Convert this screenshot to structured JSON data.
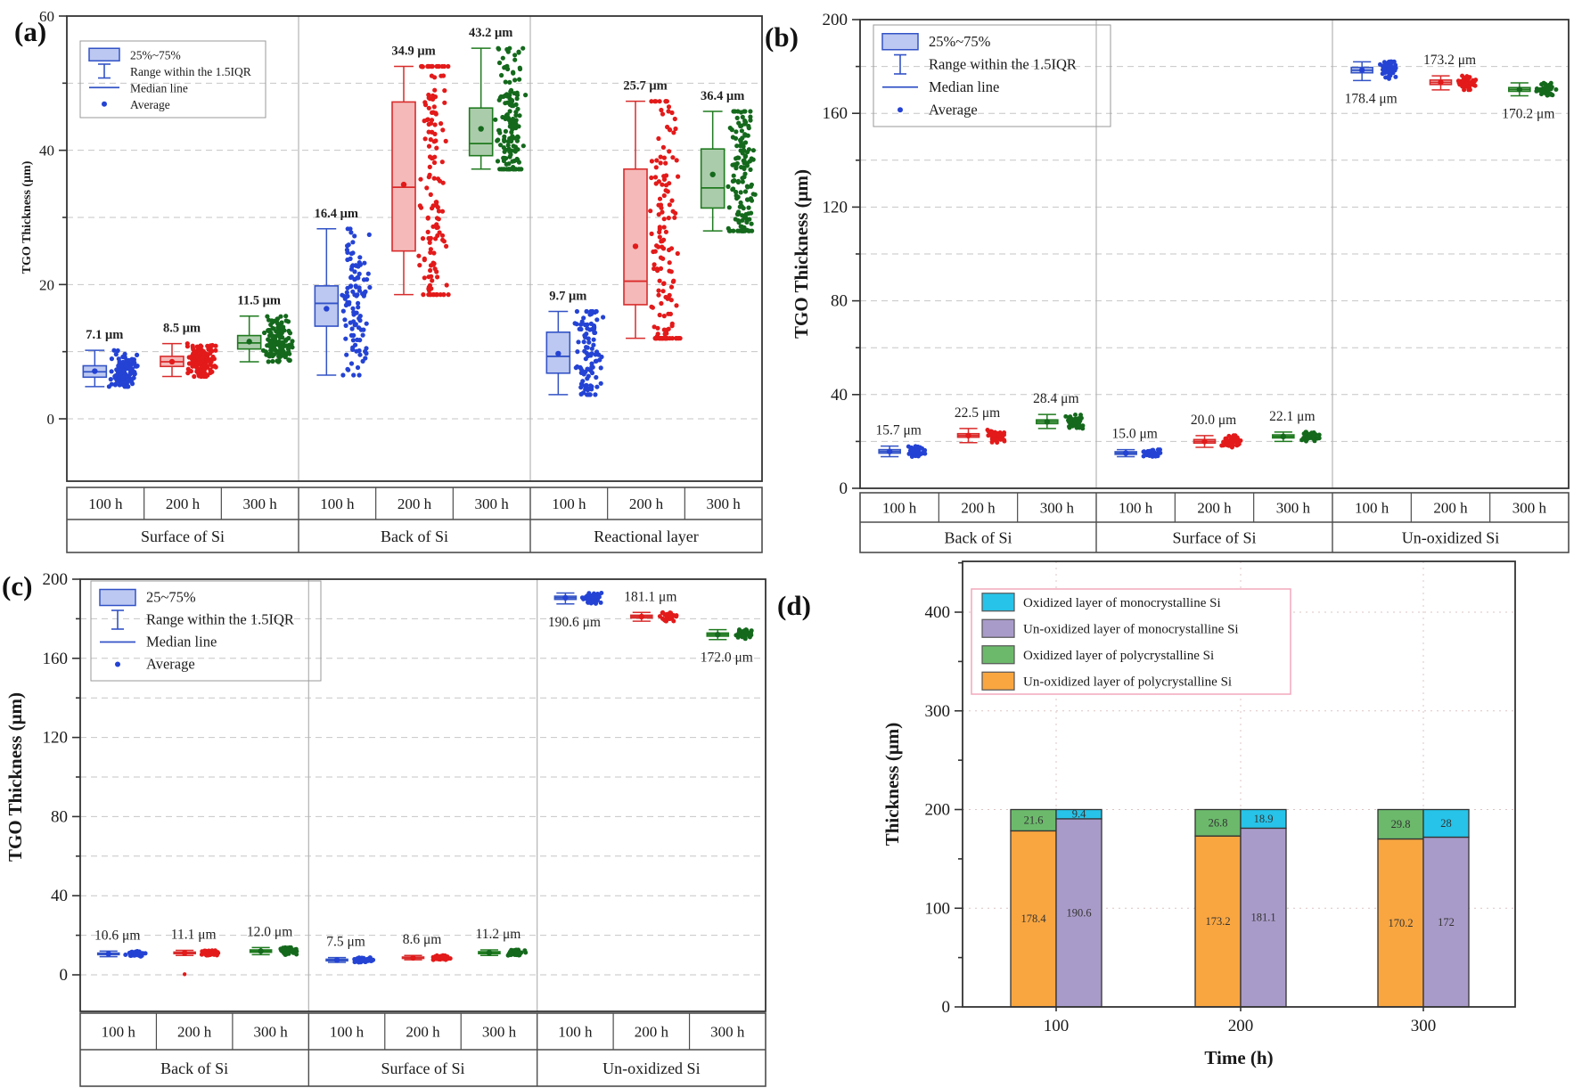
{
  "palette": {
    "blue": {
      "stroke": "#3353c6",
      "fill": "#bcc8f1",
      "point": "#2443d4"
    },
    "red": {
      "stroke": "#d92b2b",
      "fill": "#f5b9b9",
      "point": "#e31a1a"
    },
    "green": {
      "stroke": "#1f7a1f",
      "fill": "#abccab",
      "point": "#14691c"
    },
    "d_cyan": {
      "fill": "#27c3e8",
      "stroke": "#333333"
    },
    "d_purple": {
      "fill": "#a99bc9",
      "stroke": "#333333"
    },
    "d_green": {
      "fill": "#6cb96c",
      "stroke": "#333333"
    },
    "d_orange": {
      "fill": "#f9a640",
      "stroke": "#333333"
    },
    "legend_border_d": "#f2a8bc",
    "grid": "#c6c6c6",
    "grid_d": "#ddc4c4",
    "axis": "#333333"
  },
  "chart_data": [
    {
      "type": "box",
      "panel": "(a)",
      "ylabel": "TGO Thickness (μm)",
      "ylim": [
        0,
        60
      ],
      "ytick_major": 20,
      "ytick_minor": 10,
      "grid_step": 10,
      "legend": {
        "box_label": "25%~75%",
        "range_label": "Range within the 1.5IQR",
        "median_label": "Median line",
        "average_label": "Average"
      },
      "time_labels": [
        "100 h",
        "200 h",
        "300 h"
      ],
      "groups": [
        {
          "name": "Surface of Si",
          "entries": [
            {
              "time": "100 h",
              "color": "blue",
              "label": "7.1 μm",
              "label_side": "above",
              "stats": {
                "low": 4.8,
                "q1": 6.2,
                "median": 7.0,
                "q3": 7.9,
                "high": 10.2,
                "mean": 7.1
              },
              "n": 120
            },
            {
              "time": "200 h",
              "color": "red",
              "label": "8.5 μm",
              "label_side": "above",
              "stats": {
                "low": 6.3,
                "q1": 7.8,
                "median": 8.5,
                "q3": 9.3,
                "high": 11.2,
                "mean": 8.5
              },
              "n": 140
            },
            {
              "time": "300 h",
              "color": "green",
              "label": "11.5 μm",
              "label_side": "above",
              "stats": {
                "low": 8.5,
                "q1": 10.4,
                "median": 11.3,
                "q3": 12.4,
                "high": 15.3,
                "mean": 11.5
              },
              "n": 140
            }
          ]
        },
        {
          "name": "Back of Si",
          "entries": [
            {
              "time": "100 h",
              "color": "blue",
              "label": "16.4 μm",
              "label_side": "above",
              "stats": {
                "low": 6.5,
                "q1": 13.8,
                "median": 17.2,
                "q3": 19.8,
                "high": 28.3,
                "mean": 16.4
              },
              "n": 110
            },
            {
              "time": "200 h",
              "color": "red",
              "label": "34.9 μm",
              "label_side": "above",
              "stats": {
                "low": 18.5,
                "q1": 25.0,
                "median": 34.5,
                "q3": 47.2,
                "high": 52.5,
                "mean": 34.9
              },
              "n": 150
            },
            {
              "time": "300 h",
              "color": "green",
              "label": "43.2 μm",
              "label_side": "above",
              "stats": {
                "low": 37.2,
                "q1": 39.2,
                "median": 41.0,
                "q3": 46.3,
                "high": 55.2,
                "mean": 43.2
              },
              "n": 150
            }
          ]
        },
        {
          "name": "Reactional layer",
          "entries": [
            {
              "time": "100 h",
              "color": "blue",
              "label": "9.7 μm",
              "label_side": "above",
              "stats": {
                "low": 3.6,
                "q1": 6.8,
                "median": 9.3,
                "q3": 12.9,
                "high": 16.0,
                "mean": 9.7
              },
              "n": 100
            },
            {
              "time": "200 h",
              "color": "red",
              "label": "25.7 μm",
              "label_side": "above",
              "stats": {
                "low": 12.0,
                "q1": 17.0,
                "median": 20.5,
                "q3": 37.2,
                "high": 47.3,
                "mean": 25.7
              },
              "n": 150
            },
            {
              "time": "300 h",
              "color": "green",
              "label": "36.4 μm",
              "label_side": "above",
              "stats": {
                "low": 28.0,
                "q1": 31.4,
                "median": 34.4,
                "q3": 40.2,
                "high": 45.8,
                "mean": 36.4
              },
              "n": 140
            }
          ]
        }
      ]
    },
    {
      "type": "box",
      "panel": "(b)",
      "ylabel": "TGO Thickness (μm)",
      "ylim": [
        0,
        200
      ],
      "ytick_major": 40,
      "ytick_minor": 20,
      "grid_step": 20,
      "legend": {
        "box_label": "25%~75%",
        "range_label": "Range within the 1.5IQR",
        "median_label": "Median line",
        "average_label": "Average"
      },
      "time_labels": [
        "100 h",
        "200 h",
        "300 h"
      ],
      "groups": [
        {
          "name": "Back of Si",
          "entries": [
            {
              "time": "100 h",
              "color": "blue",
              "label": "15.7 μm",
              "label_side": "above",
              "stats": {
                "low": 13.5,
                "q1": 15.0,
                "median": 15.7,
                "q3": 16.5,
                "high": 18.0,
                "mean": 15.7
              },
              "n": 50
            },
            {
              "time": "200 h",
              "color": "red",
              "label": "22.5 μm",
              "label_side": "above",
              "stats": {
                "low": 19.5,
                "q1": 21.8,
                "median": 22.5,
                "q3": 23.3,
                "high": 25.5,
                "mean": 22.5
              },
              "n": 50
            },
            {
              "time": "300 h",
              "color": "green",
              "label": "28.4 μm",
              "label_side": "above",
              "stats": {
                "low": 25.5,
                "q1": 27.6,
                "median": 28.4,
                "q3": 29.2,
                "high": 31.5,
                "mean": 28.4
              },
              "n": 50
            }
          ]
        },
        {
          "name": "Surface of Si",
          "entries": [
            {
              "time": "100 h",
              "color": "blue",
              "label": "15.0 μm",
              "label_side": "above",
              "stats": {
                "low": 13.5,
                "q1": 14.5,
                "median": 15.0,
                "q3": 15.6,
                "high": 16.5,
                "mean": 15.0
              },
              "n": 50
            },
            {
              "time": "200 h",
              "color": "red",
              "label": "20.0 μm",
              "label_side": "above",
              "stats": {
                "low": 17.5,
                "q1": 19.3,
                "median": 20.0,
                "q3": 20.8,
                "high": 22.5,
                "mean": 20.0
              },
              "n": 50
            },
            {
              "time": "300 h",
              "color": "green",
              "label": "22.1 μm",
              "label_side": "above",
              "stats": {
                "low": 20.0,
                "q1": 21.5,
                "median": 22.1,
                "q3": 22.8,
                "high": 24.0,
                "mean": 22.1
              },
              "n": 50
            }
          ]
        },
        {
          "name": "Un-oxidized Si",
          "entries": [
            {
              "time": "100 h",
              "color": "blue",
              "label": "178.4 μm",
              "label_side": "below",
              "stats": {
                "low": 174.0,
                "q1": 177.3,
                "median": 178.4,
                "q3": 179.6,
                "high": 182.0,
                "mean": 178.4
              },
              "n": 50
            },
            {
              "time": "200 h",
              "color": "red",
              "label": "173.2 μm",
              "label_side": "above",
              "stats": {
                "low": 170.0,
                "q1": 172.3,
                "median": 173.2,
                "q3": 174.2,
                "high": 176.0,
                "mean": 173.2
              },
              "n": 50
            },
            {
              "time": "300 h",
              "color": "green",
              "label": "170.2 μm",
              "label_side": "below",
              "stats": {
                "low": 167.5,
                "q1": 169.4,
                "median": 170.2,
                "q3": 171.0,
                "high": 173.0,
                "mean": 170.2
              },
              "n": 50
            }
          ]
        }
      ]
    },
    {
      "type": "box",
      "panel": "(c)",
      "ylabel": "TGO Thickness (μm)",
      "ylim": [
        0,
        200
      ],
      "ytick_major": 40,
      "ytick_minor": 20,
      "grid_step": 20,
      "legend": {
        "box_label": "25~75%",
        "range_label": "Range within the 1.5IQR",
        "median_label": "Median line",
        "average_label": "Average"
      },
      "time_labels": [
        "100 h",
        "200 h",
        "300 h"
      ],
      "groups": [
        {
          "name": "Back of Si",
          "entries": [
            {
              "time": "100 h",
              "color": "blue",
              "label": "10.6 μm",
              "label_side": "above",
              "stats": {
                "low": 9.2,
                "q1": 10.2,
                "median": 10.6,
                "q3": 11.0,
                "high": 12.0,
                "mean": 10.6
              },
              "n": 50
            },
            {
              "time": "200 h",
              "color": "red",
              "label": "11.1 μm",
              "label_side": "above",
              "stats": {
                "low": 9.8,
                "q1": 10.7,
                "median": 11.1,
                "q3": 11.5,
                "high": 12.4,
                "mean": 11.1
              },
              "n": 50,
              "outliers": [
                0.3
              ]
            },
            {
              "time": "300 h",
              "color": "green",
              "label": "12.0 μm",
              "label_side": "above",
              "stats": {
                "low": 10.2,
                "q1": 11.4,
                "median": 12.0,
                "q3": 12.6,
                "high": 13.8,
                "mean": 12.0
              },
              "n": 50
            }
          ]
        },
        {
          "name": "Surface of Si",
          "entries": [
            {
              "time": "100 h",
              "color": "blue",
              "label": "7.5 μm",
              "label_side": "above",
              "stats": {
                "low": 6.3,
                "q1": 7.1,
                "median": 7.5,
                "q3": 7.9,
                "high": 8.7,
                "mean": 7.5
              },
              "n": 50
            },
            {
              "time": "200 h",
              "color": "red",
              "label": "8.6 μm",
              "label_side": "above",
              "stats": {
                "low": 7.6,
                "q1": 8.3,
                "median": 8.6,
                "q3": 9.0,
                "high": 9.8,
                "mean": 8.6
              },
              "n": 50
            },
            {
              "time": "300 h",
              "color": "green",
              "label": "11.2 μm",
              "label_side": "above",
              "stats": {
                "low": 9.8,
                "q1": 10.7,
                "median": 11.2,
                "q3": 11.7,
                "high": 12.6,
                "mean": 11.2
              },
              "n": 50
            }
          ]
        },
        {
          "name": "Un-oxidized Si",
          "entries": [
            {
              "time": "100 h",
              "color": "blue",
              "label": "190.6 μm",
              "label_side": "below",
              "stats": {
                "low": 187.5,
                "q1": 189.8,
                "median": 190.6,
                "q3": 191.4,
                "high": 193.0,
                "mean": 190.6
              },
              "n": 50
            },
            {
              "time": "200 h",
              "color": "red",
              "label": "181.1 μm",
              "label_side": "above",
              "stats": {
                "low": 178.8,
                "q1": 180.4,
                "median": 181.1,
                "q3": 181.8,
                "high": 183.2,
                "mean": 181.1
              },
              "n": 50
            },
            {
              "time": "300 h",
              "color": "green",
              "label": "172.0 μm",
              "label_side": "below",
              "stats": {
                "low": 169.5,
                "q1": 171.2,
                "median": 172.0,
                "q3": 172.8,
                "high": 174.5,
                "mean": 172.0
              },
              "n": 50
            }
          ]
        }
      ]
    },
    {
      "type": "stacked-bar",
      "panel": "(d)",
      "ylabel": "Thickness (μm)",
      "xlabel": "Time (h)",
      "ylim": [
        0,
        450
      ],
      "ytick_major": 100,
      "ytick_minor": 50,
      "categories": [
        "100",
        "200",
        "300"
      ],
      "legend": [
        {
          "color": "d_cyan",
          "label": "Oxidized layer of monocrystalline Si"
        },
        {
          "color": "d_purple",
          "label": "Un-oxidized layer of monocrystalline Si"
        },
        {
          "color": "d_green",
          "label": "Oxidized layer of polycrystalline Si"
        },
        {
          "color": "d_orange",
          "label": "Un-oxidized layer of polycrystalline Si"
        }
      ],
      "groups": [
        {
          "category": "100",
          "bars": [
            {
              "name": "polycrystalline Si",
              "segments": [
                {
                  "color": "d_orange",
                  "value": 178.4,
                  "label": "178.4"
                },
                {
                  "color": "d_green",
                  "value": 21.6,
                  "label": "21.6"
                }
              ]
            },
            {
              "name": "monocrystalline Si",
              "segments": [
                {
                  "color": "d_purple",
                  "value": 190.6,
                  "label": "190.6"
                },
                {
                  "color": "d_cyan",
                  "value": 9.4,
                  "label": "9.4"
                }
              ]
            }
          ]
        },
        {
          "category": "200",
          "bars": [
            {
              "name": "polycrystalline Si",
              "segments": [
                {
                  "color": "d_orange",
                  "value": 173.2,
                  "label": "173.2"
                },
                {
                  "color": "d_green",
                  "value": 26.8,
                  "label": "26.8"
                }
              ]
            },
            {
              "name": "monocrystalline Si",
              "segments": [
                {
                  "color": "d_purple",
                  "value": 181.1,
                  "label": "181.1"
                },
                {
                  "color": "d_cyan",
                  "value": 18.9,
                  "label": "18.9"
                }
              ]
            }
          ]
        },
        {
          "category": "300",
          "bars": [
            {
              "name": "polycrystalline Si",
              "segments": [
                {
                  "color": "d_orange",
                  "value": 170.2,
                  "label": "170.2"
                },
                {
                  "color": "d_green",
                  "value": 29.8,
                  "label": "29.8"
                }
              ]
            },
            {
              "name": "monocrystalline Si",
              "segments": [
                {
                  "color": "d_purple",
                  "value": 172,
                  "label": "172"
                },
                {
                  "color": "d_cyan",
                  "value": 28,
                  "label": "28"
                }
              ]
            }
          ]
        }
      ]
    }
  ]
}
